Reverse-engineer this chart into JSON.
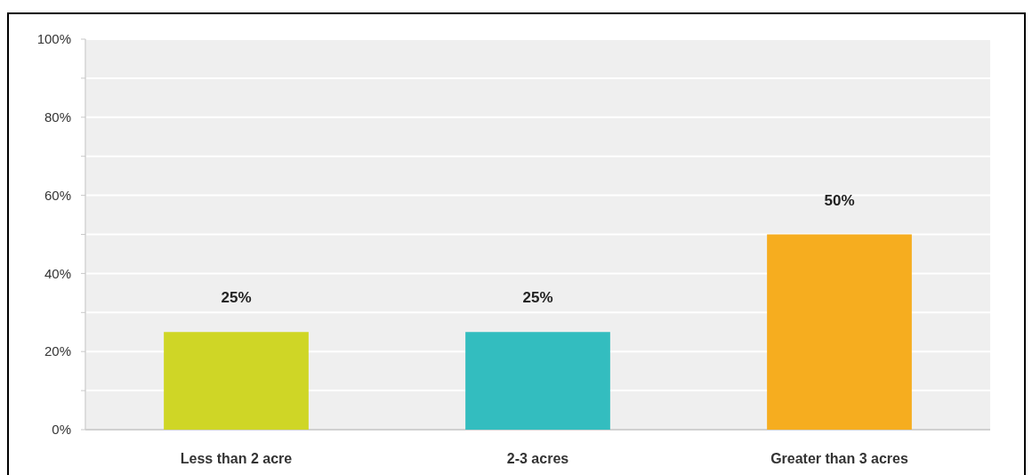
{
  "chart_data": {
    "type": "bar",
    "categories": [
      "Less than 2 acre",
      "2-3 acres",
      "Greater than 3 acres"
    ],
    "values": [
      25,
      25,
      50
    ],
    "colors": [
      "#cfd626",
      "#33bdbf",
      "#f6ad1f"
    ],
    "ylim": [
      0,
      100
    ],
    "yticks": [
      {
        "value": 0,
        "label": "0%"
      },
      {
        "value": 10,
        "label": null
      },
      {
        "value": 20,
        "label": "20%"
      },
      {
        "value": 30,
        "label": null
      },
      {
        "value": 40,
        "label": "40%"
      },
      {
        "value": 50,
        "label": null
      },
      {
        "value": 60,
        "label": "60%"
      },
      {
        "value": 70,
        "label": null
      },
      {
        "value": 80,
        "label": "80%"
      },
      {
        "value": 90,
        "label": null
      },
      {
        "value": 100,
        "label": "100%"
      }
    ],
    "value_labels": [
      "25%",
      "25%",
      "50%"
    ],
    "grid": "y"
  }
}
